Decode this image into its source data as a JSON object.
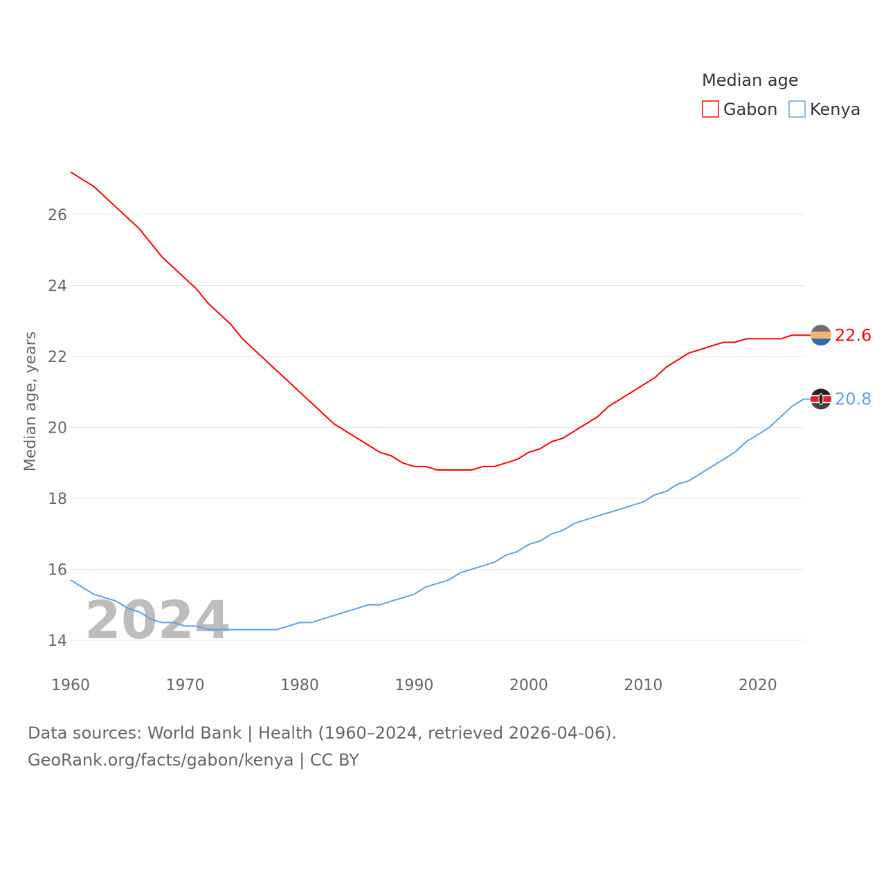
{
  "chart_data": {
    "type": "line",
    "title": "",
    "xlabel": "",
    "ylabel": "Median age, years",
    "xlim": [
      1960,
      2024
    ],
    "ylim": [
      13.5,
      27.5
    ],
    "grid": true,
    "x_ticks": [
      "1960",
      "1970",
      "1980",
      "1990",
      "2000",
      "2010",
      "2020"
    ],
    "y_ticks": [
      "14",
      "16",
      "18",
      "20",
      "22",
      "24",
      "26"
    ],
    "year_label": "2024",
    "legend": {
      "title": "Median age",
      "placement": "top-right",
      "entries": [
        "Gabon",
        "Kenya"
      ]
    },
    "x": [
      1960,
      1961,
      1962,
      1963,
      1964,
      1965,
      1966,
      1967,
      1968,
      1969,
      1970,
      1971,
      1972,
      1973,
      1974,
      1975,
      1976,
      1977,
      1978,
      1979,
      1980,
      1981,
      1982,
      1983,
      1984,
      1985,
      1986,
      1987,
      1988,
      1989,
      1990,
      1991,
      1992,
      1993,
      1994,
      1995,
      1996,
      1997,
      1998,
      1999,
      2000,
      2001,
      2002,
      2003,
      2004,
      2005,
      2006,
      2007,
      2008,
      2009,
      2010,
      2011,
      2012,
      2013,
      2014,
      2015,
      2016,
      2017,
      2018,
      2019,
      2020,
      2021,
      2022,
      2023,
      2024
    ],
    "series": [
      {
        "name": "Gabon",
        "color": "#ff0000",
        "end_label": "22.6",
        "values": [
          27.2,
          27.0,
          26.8,
          26.5,
          26.2,
          25.9,
          25.6,
          25.2,
          24.8,
          24.5,
          24.2,
          23.9,
          23.5,
          23.2,
          22.9,
          22.5,
          22.2,
          21.9,
          21.6,
          21.3,
          21.0,
          20.7,
          20.4,
          20.1,
          19.9,
          19.7,
          19.5,
          19.3,
          19.2,
          19.0,
          18.9,
          18.9,
          18.8,
          18.8,
          18.8,
          18.8,
          18.9,
          18.9,
          19.0,
          19.1,
          19.3,
          19.4,
          19.6,
          19.7,
          19.9,
          20.1,
          20.3,
          20.6,
          20.8,
          21.0,
          21.2,
          21.4,
          21.7,
          21.9,
          22.1,
          22.2,
          22.3,
          22.4,
          22.4,
          22.5,
          22.5,
          22.5,
          22.5,
          22.6,
          22.6
        ]
      },
      {
        "name": "Kenya",
        "color": "#5ba3ea",
        "end_label": "20.8",
        "values": [
          15.7,
          15.5,
          15.3,
          15.2,
          15.1,
          14.9,
          14.8,
          14.6,
          14.5,
          14.5,
          14.4,
          14.4,
          14.3,
          14.3,
          14.3,
          14.3,
          14.3,
          14.3,
          14.3,
          14.4,
          14.5,
          14.5,
          14.6,
          14.7,
          14.8,
          14.9,
          15.0,
          15.0,
          15.1,
          15.2,
          15.3,
          15.5,
          15.6,
          15.7,
          15.9,
          16.0,
          16.1,
          16.2,
          16.4,
          16.5,
          16.7,
          16.8,
          17.0,
          17.1,
          17.3,
          17.4,
          17.5,
          17.6,
          17.7,
          17.8,
          17.9,
          18.1,
          18.2,
          18.4,
          18.5,
          18.7,
          18.9,
          19.1,
          19.3,
          19.6,
          19.8,
          20.0,
          20.3,
          20.6,
          20.8
        ]
      }
    ]
  },
  "footer": {
    "line1": "Data sources: World Bank | Health (1960–2024, retrieved 2026-04-06).",
    "line2": "GeoRank.org/facts/gabon/kenya | CC BY"
  }
}
